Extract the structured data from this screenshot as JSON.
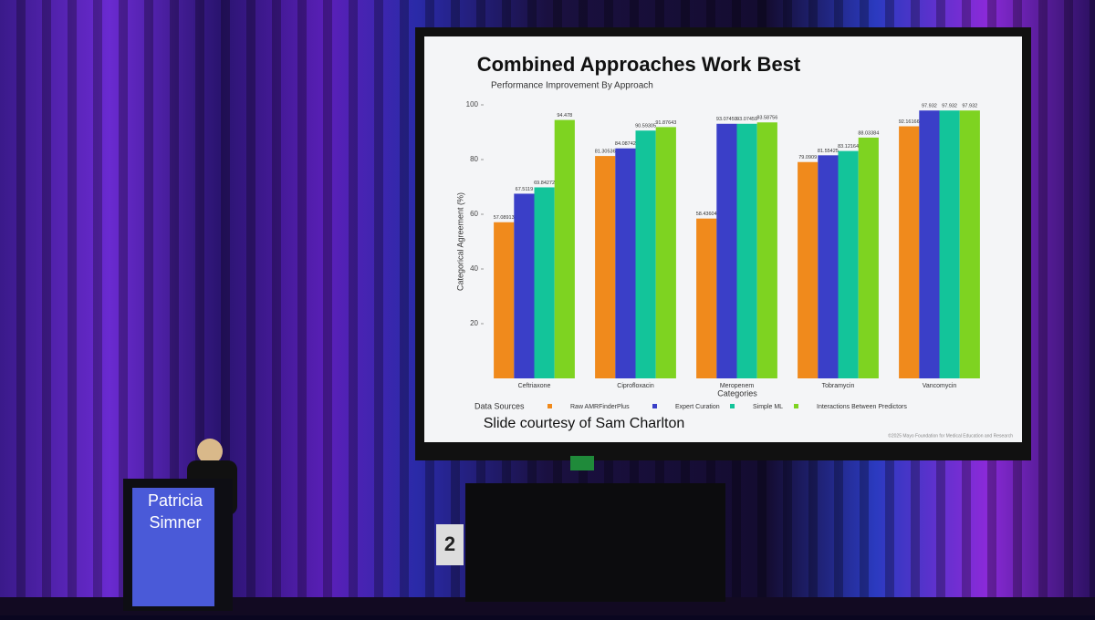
{
  "chart_data": {
    "type": "bar",
    "title": "Combined Approaches Work Best",
    "subtitle": "Performance Improvement By Approach",
    "y_label": "Categorical Agreement (%)",
    "x_label": "Categories",
    "legend_title": "Data Sources",
    "categories": [
      "Ceftriaxone",
      "Ciprofloxacin",
      "Meropenem",
      "Tobramycin",
      "Vancomycin"
    ],
    "series": [
      {
        "name": "Raw AMRFinderPlus",
        "color": "#f08a1c",
        "values": [
          57.08913,
          81.30536,
          58.43604,
          79.0909,
          92.16166
        ]
      },
      {
        "name": "Expert Curation",
        "color": "#3a3fc8",
        "values": [
          67.5119,
          84.08742,
          93.07459,
          81.55425,
          97.932
        ]
      },
      {
        "name": "Simple ML",
        "color": "#13c49a",
        "values": [
          69.84272,
          90.59305,
          93.07459,
          83.12164,
          97.932
        ]
      },
      {
        "name": "Interactions Between Predictors",
        "color": "#7ed321",
        "values": [
          94.478,
          91.87643,
          93.58756,
          88.03384,
          97.932
        ]
      }
    ],
    "ylim": [
      0,
      100
    ],
    "yticks": [
      20,
      40,
      60,
      80,
      100
    ],
    "grid": false
  },
  "slide": {
    "credit": "Slide courtesy of Sam Charlton",
    "footer": "©2025 Mayo Foundation for Medical Education and Research"
  },
  "podium": {
    "name": [
      "Patricia",
      "Simner"
    ]
  },
  "room_sign": "2"
}
